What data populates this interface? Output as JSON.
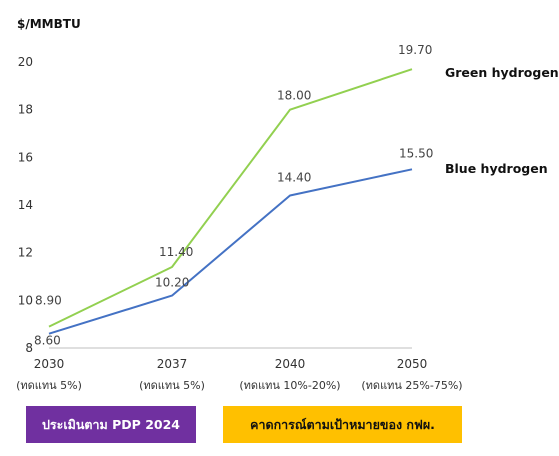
{
  "chart_data": {
    "type": "line",
    "ylabel": "$/MMBTU",
    "ylim": [
      8,
      20
    ],
    "yticks": [
      8,
      10,
      12,
      14,
      16,
      18,
      20
    ],
    "grid": false,
    "categories": [
      "2030",
      "2037",
      "2040",
      "2050"
    ],
    "category_sublabels": [
      "(ทดแทน 5%)",
      "(ทดแทน 5%)",
      "(ทดแทน 10%-20%)",
      "(ทดแทน 25%-75%)"
    ],
    "series": [
      {
        "name": "Green hydrogen",
        "color": "#92d050",
        "values": [
          8.9,
          11.4,
          18.0,
          19.7
        ],
        "labels": [
          "8.90",
          "11.40",
          "18.00",
          "19.70"
        ]
      },
      {
        "name": "Blue hydrogen",
        "color": "#4472c4",
        "values": [
          8.6,
          10.2,
          14.4,
          15.5
        ],
        "labels": [
          "8.60",
          "10.20",
          "14.40",
          "15.50"
        ]
      }
    ]
  },
  "badges": {
    "pdp": "ประเมินตาม PDP 2024",
    "egat": "คาดการณ์ตามเป้าหมายของ กฟผ."
  }
}
